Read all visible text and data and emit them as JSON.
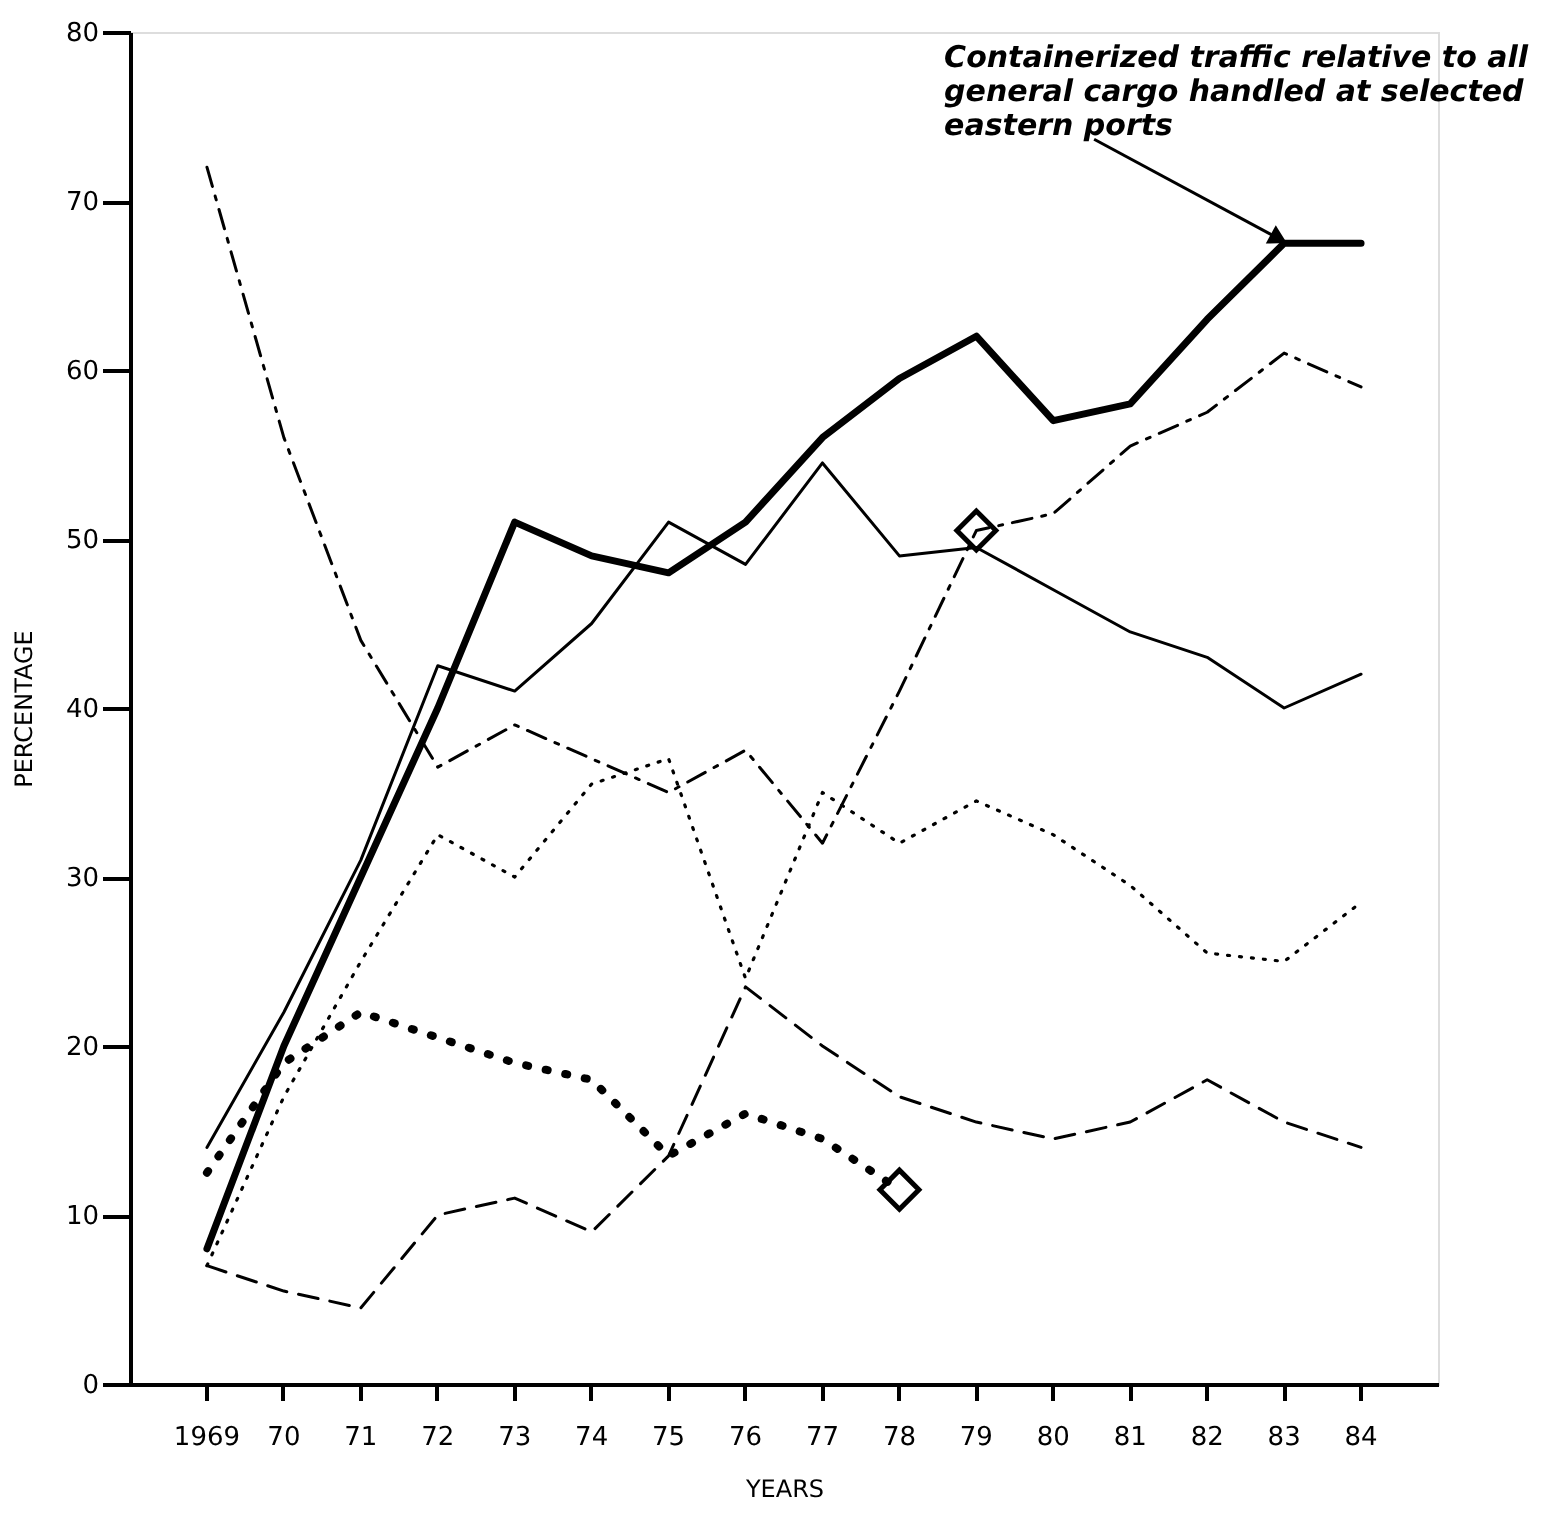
{
  "chart_data": {
    "type": "line",
    "xlabel": "YEARS",
    "ylabel": "PERCENTAGE",
    "categories": [
      "1969",
      "70",
      "71",
      "72",
      "73",
      "74",
      "75",
      "76",
      "77",
      "78",
      "79",
      "80",
      "81",
      "82",
      "83",
      "84"
    ],
    "ylim": [
      0,
      80
    ],
    "yticks": [
      0,
      10,
      20,
      30,
      40,
      50,
      60,
      70,
      80
    ],
    "grid": false,
    "marker": "none",
    "series": [
      {
        "color": "#000000",
        "line_style": "solid",
        "values": [
          8,
          20,
          30,
          40,
          51,
          49,
          48,
          51,
          56,
          59.5,
          62,
          57,
          58,
          63,
          67.5,
          67.5
        ]
      },
      {
        "color": "#000000",
        "line_style": "solid",
        "values": [
          14,
          22,
          31,
          42.5,
          41,
          45,
          51,
          48.5,
          54.5,
          49,
          49.5,
          47,
          44.5,
          43,
          40,
          42
        ]
      },
      {
        "color": "#000000",
        "line_style": "dashdot",
        "values": [
          72,
          56,
          44,
          36.5,
          39,
          37,
          35,
          37.5,
          32,
          41,
          50.5,
          51.5,
          55.5,
          57.5,
          61,
          59
        ]
      },
      {
        "color": "#000000",
        "line_style": "dotted",
        "values": [
          7,
          17,
          25,
          32.5,
          30,
          35.5,
          37,
          24,
          35,
          32,
          34.5,
          32.5,
          29.5,
          25.5,
          25,
          28.5
        ]
      },
      {
        "color": "#000000",
        "line_style": "dashed",
        "values": [
          7,
          5.5,
          4.5,
          10,
          11,
          9,
          13.5,
          23.5,
          20,
          17,
          15.5,
          14.5,
          15.5,
          18,
          15.5,
          14
        ]
      },
      {
        "color": "#000000",
        "line_style": "dotted",
        "values": [
          12.5,
          19,
          22,
          20.5,
          19,
          18,
          13.5,
          16,
          14.5,
          11.5,
          null,
          null,
          null,
          null,
          null,
          null
        ]
      },
      {
        "type": "scatter",
        "color": "#000000",
        "marker": "diamond",
        "x": [
          "78",
          "79"
        ],
        "values": [
          11.5,
          50.5
        ]
      }
    ],
    "annotations": [
      {
        "text": "Containerized traffic relative to all general cargo handled at selected eastern ports",
        "x": "83",
        "y": 67.5
      }
    ]
  }
}
